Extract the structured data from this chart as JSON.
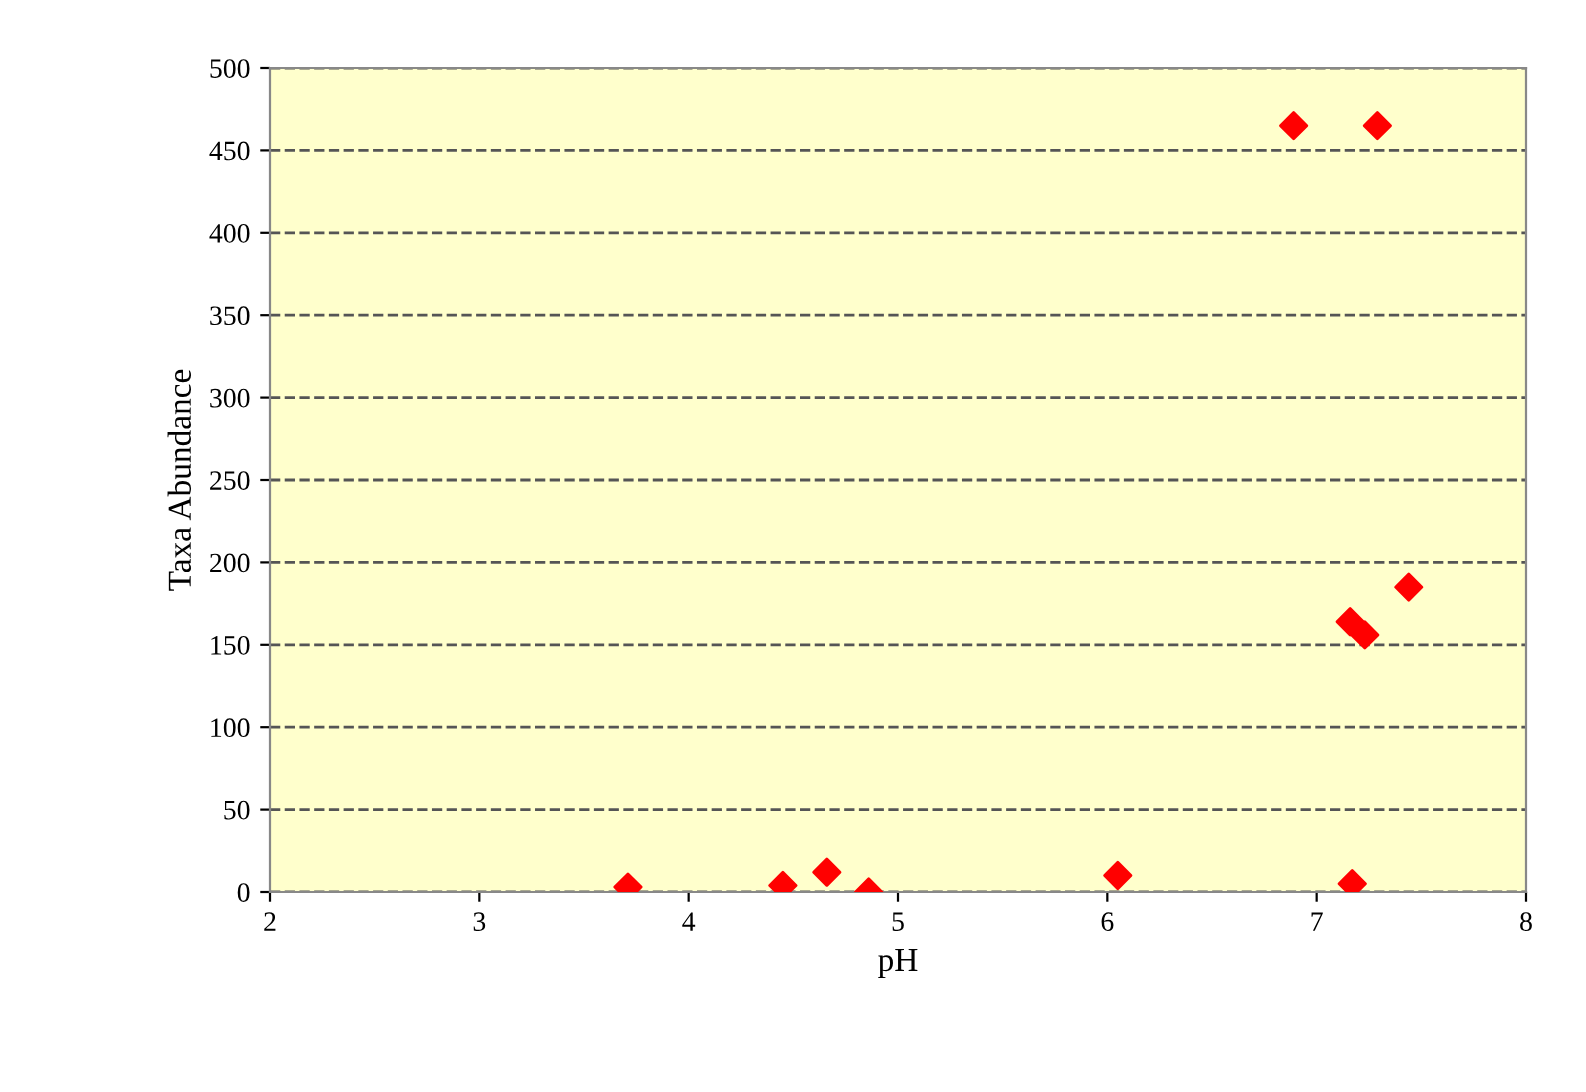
{
  "chart_data": {
    "type": "scatter",
    "xlabel": "pH",
    "ylabel": "Taxa Abundance",
    "series": [
      {
        "color": "#ff0000",
        "x": [
          3.71,
          4.45,
          4.66,
          4.86,
          6.05,
          6.89,
          7.29,
          7.44,
          7.16,
          7.23,
          7.17
        ],
        "values": [
          3,
          4,
          12,
          0,
          10,
          465,
          465,
          185,
          164,
          156,
          5
        ]
      }
    ],
    "marker": "diamond",
    "xlim": [
      2,
      8
    ],
    "xticks": [
      2,
      3,
      4,
      5,
      6,
      7,
      8
    ],
    "ylim": [
      0,
      500
    ],
    "yticks": [
      0,
      50,
      100,
      150,
      200,
      250,
      300,
      350,
      400,
      450,
      500
    ],
    "grid": "y"
  }
}
